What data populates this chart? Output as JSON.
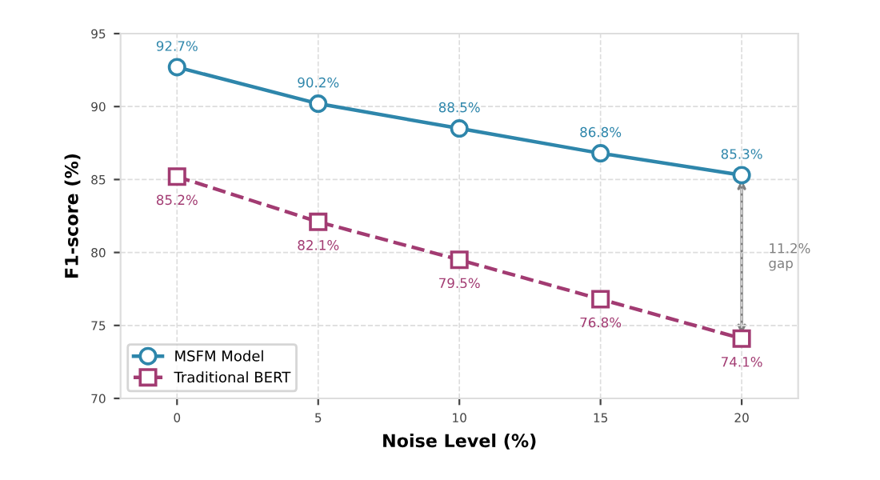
{
  "chart_data": {
    "type": "line",
    "xlabel": "Noise Level (%)",
    "ylabel": "F1-score (%)",
    "x": [
      0,
      5,
      10,
      15,
      20
    ],
    "series": [
      {
        "name": "MSFM Model",
        "color": "#2e86ab",
        "marker": "circle",
        "line_style": "solid",
        "values": [
          92.7,
          90.2,
          88.5,
          86.8,
          85.3
        ],
        "value_labels": [
          "92.7%",
          "90.2%",
          "88.5%",
          "86.8%",
          "85.3%"
        ]
      },
      {
        "name": "Traditional BERT",
        "color": "#a23b72",
        "marker": "square",
        "line_style": "dashed",
        "values": [
          85.2,
          82.1,
          79.5,
          76.8,
          74.1
        ],
        "value_labels": [
          "85.2%",
          "82.1%",
          "79.5%",
          "76.8%",
          "74.1%"
        ]
      }
    ],
    "xlim": [
      -2,
      22
    ],
    "xticks": [
      0,
      5,
      10,
      15,
      20
    ],
    "ylim": [
      70,
      95
    ],
    "yticks": [
      70,
      75,
      80,
      85,
      90,
      95
    ],
    "annotations": [
      "11.2%\ngap"
    ],
    "grid": true,
    "legend": "bottom left"
  }
}
